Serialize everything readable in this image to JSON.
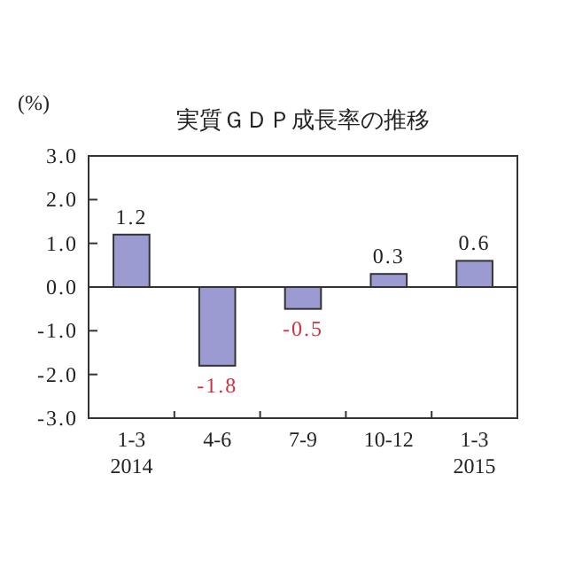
{
  "chart_data": {
    "type": "bar",
    "title": "実質ＧＤＰ成長率の推移",
    "ylabel": "(%)",
    "categories": [
      "1-3\n2014",
      "4-6",
      "7-9",
      "10-12",
      "1-3\n2015"
    ],
    "values": [
      1.2,
      -1.8,
      -0.5,
      0.3,
      0.6
    ],
    "color": "#9b9bd2",
    "value_labels": [
      "1.2",
      "-1.8",
      "-0.5",
      "0.3",
      "0.6"
    ],
    "ylim": [
      -3,
      3
    ],
    "yticks": [
      {
        "value": 3,
        "label": "3.0"
      },
      {
        "value": 2,
        "label": "2.0"
      },
      {
        "value": 1,
        "label": "1.0"
      },
      {
        "value": 0,
        "label": "0.0"
      },
      {
        "value": -1,
        "label": "-1.0"
      },
      {
        "value": -2,
        "label": "-2.0"
      },
      {
        "value": -3,
        "label": "-3.0"
      }
    ]
  }
}
